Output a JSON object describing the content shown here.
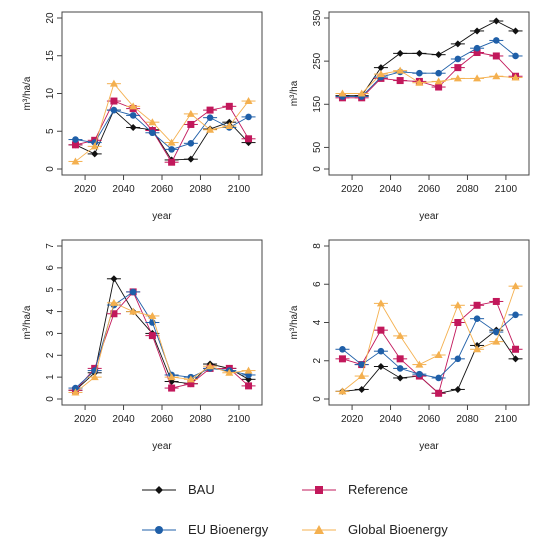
{
  "legend": {
    "items": [
      {
        "name": "BAU",
        "color": "#111111",
        "marker": "diamond"
      },
      {
        "name": "Reference",
        "color": "#c2185b",
        "marker": "square"
      },
      {
        "name": "EU Bioenergy",
        "color": "#1f5fa8",
        "marker": "circle"
      },
      {
        "name": "Global Bioenergy",
        "color": "#f4b04f",
        "marker": "triangle"
      }
    ]
  },
  "chart_data": [
    {
      "type": "line",
      "xlabel": "year",
      "ylabel": "m³/ha/a",
      "xticks": [
        2020,
        2040,
        2060,
        2080,
        2100
      ],
      "yticks": [
        0,
        5,
        10,
        15,
        20
      ],
      "xlim": [
        2008,
        2112
      ],
      "ylim": [
        0,
        20
      ],
      "x": [
        2015,
        2025,
        2035,
        2045,
        2055,
        2065,
        2075,
        2085,
        2095,
        2105
      ],
      "series": [
        {
          "name": "BAU",
          "values": [
            3.2,
            2.0,
            7.8,
            5.5,
            5.2,
            1.2,
            1.3,
            5.3,
            6.2,
            3.5
          ]
        },
        {
          "name": "Reference",
          "values": [
            3.2,
            3.8,
            9.0,
            8.0,
            5.1,
            0.9,
            5.9,
            7.8,
            8.3,
            4.0
          ]
        },
        {
          "name": "EU Bioenergy",
          "values": [
            3.9,
            3.5,
            7.8,
            7.1,
            4.8,
            2.6,
            3.4,
            6.8,
            5.5,
            6.9
          ]
        },
        {
          "name": "Global Bioenergy",
          "values": [
            1.0,
            3.0,
            11.3,
            8.3,
            6.2,
            3.5,
            7.3,
            5.2,
            5.7,
            9.0
          ]
        }
      ]
    },
    {
      "type": "line",
      "xlabel": "year",
      "ylabel": "m³/ha",
      "xticks": [
        2020,
        2040,
        2060,
        2080,
        2100
      ],
      "yticks": [
        0,
        50,
        150,
        250,
        350
      ],
      "xlim": [
        2008,
        2112
      ],
      "ylim": [
        0,
        350
      ],
      "x": [
        2015,
        2025,
        2035,
        2045,
        2055,
        2065,
        2075,
        2085,
        2095,
        2105
      ],
      "series": [
        {
          "name": "BAU",
          "values": [
            170,
            170,
            235,
            268,
            268,
            265,
            290,
            320,
            343,
            320
          ]
        },
        {
          "name": "Reference",
          "values": [
            165,
            165,
            210,
            205,
            203,
            190,
            235,
            270,
            262,
            215
          ]
        },
        {
          "name": "EU Bioenergy",
          "values": [
            168,
            168,
            213,
            225,
            222,
            222,
            255,
            280,
            298,
            262
          ]
        },
        {
          "name": "Global Bioenergy",
          "values": [
            175,
            175,
            220,
            228,
            200,
            203,
            210,
            210,
            215,
            212
          ]
        }
      ]
    },
    {
      "type": "line",
      "xlabel": "year",
      "ylabel": "m³/ha/a",
      "xticks": [
        2020,
        2040,
        2060,
        2080,
        2100
      ],
      "yticks": [
        0,
        1,
        2,
        3,
        4,
        5,
        6,
        7
      ],
      "xlim": [
        2008,
        2112
      ],
      "ylim": [
        0,
        7
      ],
      "x": [
        2015,
        2025,
        2035,
        2045,
        2055,
        2065,
        2075,
        2085,
        2095,
        2105
      ],
      "series": [
        {
          "name": "BAU",
          "values": [
            0.4,
            1.2,
            5.5,
            4.0,
            3.0,
            0.8,
            0.7,
            1.6,
            1.4,
            0.9
          ]
        },
        {
          "name": "Reference",
          "values": [
            0.4,
            1.4,
            3.9,
            4.9,
            2.9,
            0.5,
            0.7,
            1.4,
            1.4,
            0.6
          ]
        },
        {
          "name": "EU Bioenergy",
          "values": [
            0.5,
            1.3,
            4.3,
            4.9,
            3.5,
            1.1,
            1.0,
            1.4,
            1.3,
            1.1
          ]
        },
        {
          "name": "Global Bioenergy",
          "values": [
            0.3,
            1.0,
            4.4,
            4.0,
            3.8,
            1.0,
            0.9,
            1.5,
            1.2,
            1.3
          ]
        }
      ]
    },
    {
      "type": "line",
      "xlabel": "year",
      "ylabel": "m³/ha/a",
      "xticks": [
        2020,
        2040,
        2060,
        2080,
        2100
      ],
      "yticks": [
        0,
        2,
        4,
        6,
        8
      ],
      "xlim": [
        2008,
        2112
      ],
      "ylim": [
        0,
        8
      ],
      "x": [
        2015,
        2025,
        2035,
        2045,
        2055,
        2065,
        2075,
        2085,
        2095,
        2105
      ],
      "series": [
        {
          "name": "BAU",
          "values": [
            0.4,
            0.5,
            1.7,
            1.1,
            1.2,
            0.3,
            0.5,
            2.8,
            3.6,
            2.1
          ]
        },
        {
          "name": "Reference",
          "values": [
            2.1,
            1.8,
            3.6,
            2.1,
            1.2,
            0.3,
            4.0,
            4.9,
            5.1,
            2.6
          ]
        },
        {
          "name": "EU Bioenergy",
          "values": [
            2.6,
            1.8,
            2.5,
            1.6,
            1.3,
            1.1,
            2.1,
            4.2,
            3.5,
            4.4
          ]
        },
        {
          "name": "Global Bioenergy",
          "values": [
            0.4,
            1.2,
            5.0,
            3.3,
            1.8,
            2.3,
            4.9,
            2.6,
            3.0,
            5.9
          ]
        }
      ]
    }
  ]
}
